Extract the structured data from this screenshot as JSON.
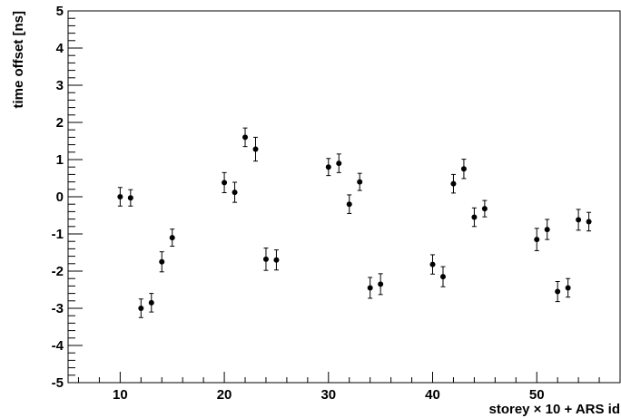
{
  "chart_data": {
    "type": "scatter",
    "xlabel": "storey × 10 + ARS id",
    "ylabel": "time offset [ns]",
    "xlim": [
      5,
      58
    ],
    "ylim": [
      -5,
      5
    ],
    "x_ticks": [
      10,
      20,
      30,
      40,
      50
    ],
    "y_ticks": [
      -5,
      -4,
      -3,
      -2,
      -1,
      0,
      1,
      2,
      3,
      4,
      5
    ],
    "grid": false,
    "legend": "none",
    "marker_color": "#000000",
    "points": [
      {
        "x": 10,
        "y": 0.0,
        "err": 0.25
      },
      {
        "x": 11,
        "y": -0.03,
        "err": 0.22
      },
      {
        "x": 12,
        "y": -3.0,
        "err": 0.25
      },
      {
        "x": 13,
        "y": -2.85,
        "err": 0.25
      },
      {
        "x": 14,
        "y": -1.75,
        "err": 0.27
      },
      {
        "x": 15,
        "y": -1.1,
        "err": 0.23
      },
      {
        "x": 20,
        "y": 0.38,
        "err": 0.27
      },
      {
        "x": 21,
        "y": 0.12,
        "err": 0.27
      },
      {
        "x": 22,
        "y": 1.6,
        "err": 0.25
      },
      {
        "x": 23,
        "y": 1.28,
        "err": 0.32
      },
      {
        "x": 24,
        "y": -1.68,
        "err": 0.3
      },
      {
        "x": 25,
        "y": -1.7,
        "err": 0.27
      },
      {
        "x": 30,
        "y": 0.8,
        "err": 0.23
      },
      {
        "x": 31,
        "y": 0.9,
        "err": 0.25
      },
      {
        "x": 32,
        "y": -0.2,
        "err": 0.25
      },
      {
        "x": 33,
        "y": 0.4,
        "err": 0.23
      },
      {
        "x": 34,
        "y": -2.45,
        "err": 0.28
      },
      {
        "x": 35,
        "y": -2.35,
        "err": 0.28
      },
      {
        "x": 40,
        "y": -1.82,
        "err": 0.26
      },
      {
        "x": 41,
        "y": -2.15,
        "err": 0.27
      },
      {
        "x": 42,
        "y": 0.35,
        "err": 0.25
      },
      {
        "x": 43,
        "y": 0.75,
        "err": 0.26
      },
      {
        "x": 44,
        "y": -0.55,
        "err": 0.25
      },
      {
        "x": 45,
        "y": -0.32,
        "err": 0.22
      },
      {
        "x": 50,
        "y": -1.15,
        "err": 0.3
      },
      {
        "x": 51,
        "y": -0.88,
        "err": 0.27
      },
      {
        "x": 52,
        "y": -2.55,
        "err": 0.27
      },
      {
        "x": 53,
        "y": -2.45,
        "err": 0.25
      },
      {
        "x": 54,
        "y": -0.62,
        "err": 0.28
      },
      {
        "x": 55,
        "y": -0.67,
        "err": 0.25
      }
    ]
  }
}
